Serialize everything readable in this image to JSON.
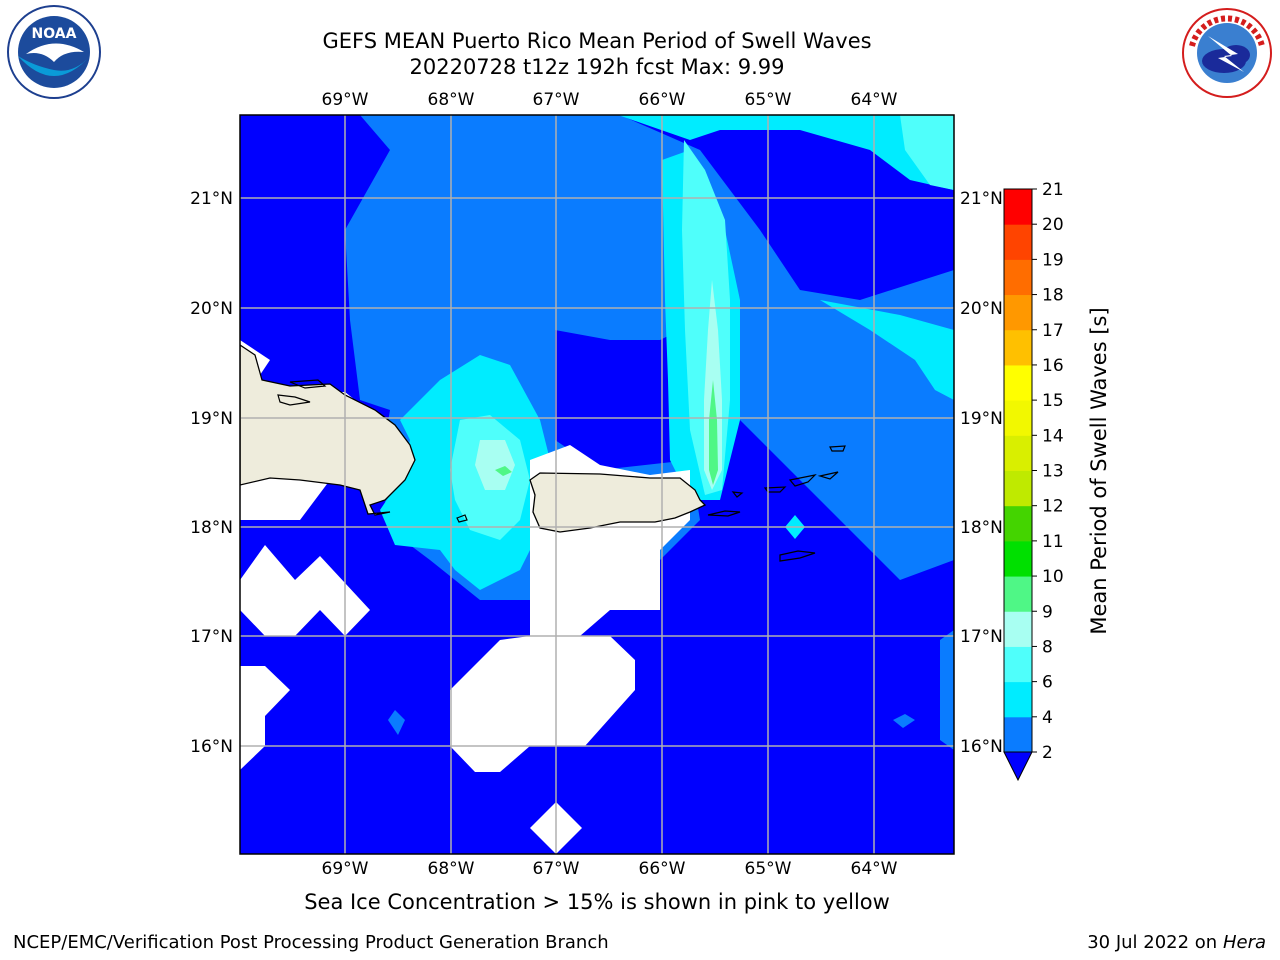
{
  "title": {
    "line1": "GEFS MEAN Puerto Rico Mean Period of Swell Waves",
    "line2": "20220728 t12z 192h fcst   Max: 9.99"
  },
  "logos": {
    "left": {
      "icon": "noaa-logo",
      "text": "NOAA"
    },
    "right": {
      "icon": "nws-logo",
      "text": "NATIONAL WEATHER SERVICE"
    }
  },
  "map": {
    "lon_ticks": [
      "69°W",
      "68°W",
      "67°W",
      "66°W",
      "65°W",
      "64°W"
    ],
    "lat_ticks": [
      "21°N",
      "20°N",
      "19°N",
      "18°N",
      "17°N",
      "16°N"
    ],
    "colors": {
      "land": "#eeecdc",
      "no_data": "#ffffff",
      "grid": "#b0b0b0"
    }
  },
  "colorbar": {
    "title": "Mean Period of Swell Waves [s]",
    "ticks": [
      "2",
      "4",
      "6",
      "8",
      "9",
      "10",
      "11",
      "12",
      "13",
      "14",
      "15",
      "16",
      "17",
      "18",
      "19",
      "20",
      "21"
    ],
    "bins": [
      {
        "from": 2,
        "to": 4,
        "color": "#0a7cff"
      },
      {
        "from": 4,
        "to": 6,
        "color": "#00ecff"
      },
      {
        "from": 6,
        "to": 8,
        "color": "#4ffffb"
      },
      {
        "from": 8,
        "to": 9,
        "color": "#a8fff2"
      },
      {
        "from": 9,
        "to": 10,
        "color": "#4ff786"
      },
      {
        "from": 10,
        "to": 11,
        "color": "#00e000"
      },
      {
        "from": 11,
        "to": 12,
        "color": "#44d400"
      },
      {
        "from": 12,
        "to": 13,
        "color": "#bfea00"
      },
      {
        "from": 13,
        "to": 14,
        "color": "#d9ef00"
      },
      {
        "from": 14,
        "to": 15,
        "color": "#f2f800"
      },
      {
        "from": 15,
        "to": 16,
        "color": "#ffff00"
      },
      {
        "from": 16,
        "to": 17,
        "color": "#ffc000"
      },
      {
        "from": 17,
        "to": 18,
        "color": "#ff9800"
      },
      {
        "from": 18,
        "to": 19,
        "color": "#ff6d00"
      },
      {
        "from": 19,
        "to": 20,
        "color": "#ff4400"
      },
      {
        "from": 20,
        "to": 21,
        "color": "#ff0000"
      }
    ],
    "under_color": "#0000ff"
  },
  "caption": "Sea Ice Concentration > 15% is shown in pink to yellow",
  "footer": {
    "left": "NCEP/EMC/Verification Post Processing Product Generation Branch",
    "date": "30 Jul 2022 on ",
    "machine": "Hera"
  }
}
